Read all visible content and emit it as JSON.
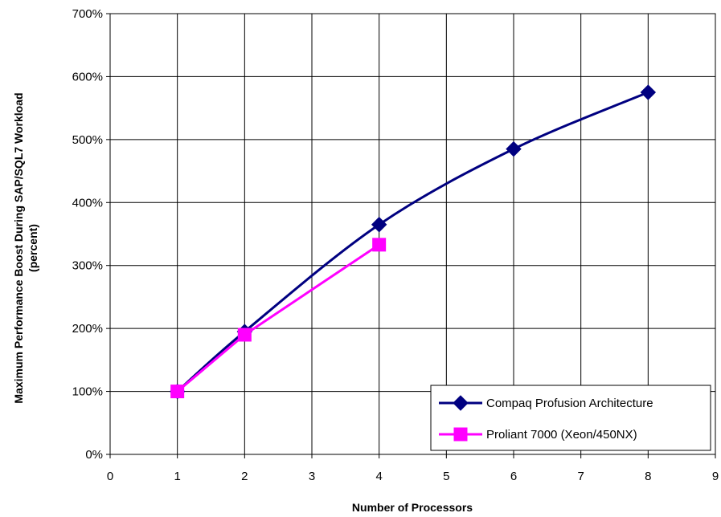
{
  "chart_data": {
    "type": "line",
    "title": "",
    "xlabel": "Number of Processors",
    "ylabel_lines": [
      "Maximum Performance Boost During SAP/SQL7 Workload",
      "(percent)"
    ],
    "xlim": [
      0,
      9
    ],
    "ylim": [
      0,
      700
    ],
    "x_ticks": [
      0,
      1,
      2,
      3,
      4,
      5,
      6,
      7,
      8,
      9
    ],
    "x_tick_labels": [
      "0",
      "1",
      "2",
      "3",
      "4",
      "5",
      "6",
      "7",
      "8",
      "9"
    ],
    "y_ticks": [
      0,
      100,
      200,
      300,
      400,
      500,
      600,
      700
    ],
    "y_tick_labels": [
      "0%",
      "100%",
      "200%",
      "300%",
      "400%",
      "500%",
      "600%",
      "700%"
    ],
    "grid": true,
    "legend_position": "bottom-right",
    "series": [
      {
        "name": "Compaq Profusion Architecture",
        "color": "#000080",
        "marker": "diamond",
        "smooth": true,
        "x": [
          1,
          2,
          4,
          6,
          8
        ],
        "y": [
          100,
          195,
          365,
          485,
          575
        ]
      },
      {
        "name": "Proliant 7000 (Xeon/450NX)",
        "color": "#ff00ff",
        "marker": "square",
        "smooth": false,
        "x": [
          1,
          2,
          4
        ],
        "y": [
          100,
          190,
          333
        ]
      }
    ]
  }
}
